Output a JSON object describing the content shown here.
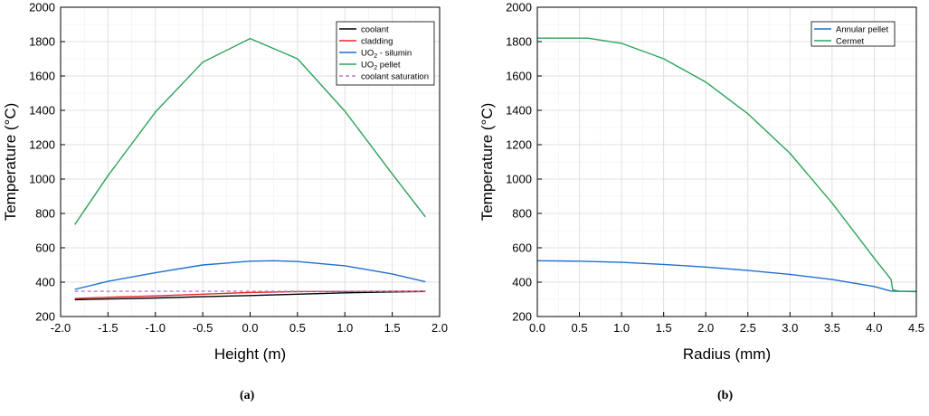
{
  "chart_data": [
    {
      "type": "line",
      "caption": "(a)",
      "xlabel": "Height (m)",
      "ylabel": "Temperature (°C)",
      "xlim": [
        -2.0,
        2.0
      ],
      "ylim": [
        200,
        2000
      ],
      "xticks": [
        "-2.0",
        "-1.5",
        "-1.0",
        "-0.5",
        "0.0",
        "0.5",
        "1.0",
        "1.5",
        "2.0"
      ],
      "yticks": [
        "200",
        "400",
        "600",
        "800",
        "1000",
        "1200",
        "1400",
        "1600",
        "1800",
        "2000"
      ],
      "grid": true,
      "legend_position": "top-right",
      "series": [
        {
          "name": "coolant",
          "color": "#000000",
          "style": "solid",
          "x": [
            -1.85,
            -1.5,
            -1.0,
            -0.5,
            0.0,
            0.5,
            1.0,
            1.5,
            1.85
          ],
          "y": [
            298,
            302,
            308,
            315,
            322,
            330,
            338,
            343,
            346
          ]
        },
        {
          "name": "cladding",
          "color": "#e8262a",
          "style": "solid",
          "x": [
            -1.85,
            -1.5,
            -1.0,
            -0.5,
            0.0,
            0.5,
            1.0,
            1.5,
            1.85
          ],
          "y": [
            305,
            312,
            320,
            330,
            340,
            345,
            346,
            347,
            348
          ]
        },
        {
          "name": "UO2 - silumin",
          "label_main": "UO",
          "label_sub": "2",
          "label_rest": " - silumin",
          "color": "#1f6fd1",
          "style": "solid",
          "x": [
            -1.85,
            -1.5,
            -1.0,
            -0.5,
            0.0,
            0.25,
            0.5,
            1.0,
            1.5,
            1.85
          ],
          "y": [
            358,
            405,
            455,
            500,
            522,
            525,
            520,
            495,
            448,
            402
          ]
        },
        {
          "name": "UO2 pellet",
          "label_main": "UO",
          "label_sub": "2",
          "label_rest": " pellet",
          "color": "#2ca35a",
          "style": "solid",
          "x": [
            -1.85,
            -1.5,
            -1.0,
            -0.5,
            0.0,
            0.5,
            1.0,
            1.5,
            1.85
          ],
          "y": [
            735,
            1020,
            1390,
            1680,
            1818,
            1700,
            1395,
            1030,
            780
          ]
        },
        {
          "name": "coolant saturation",
          "color": "#b07fd6",
          "style": "dashed",
          "x": [
            -1.85,
            1.85
          ],
          "y": [
            347,
            347
          ]
        }
      ]
    },
    {
      "type": "line",
      "caption": "(b)",
      "xlabel": "Radius (mm)",
      "ylabel": "Temperature (°C)",
      "xlim": [
        0.0,
        4.5
      ],
      "ylim": [
        200,
        2000
      ],
      "xticks": [
        "0.0",
        "0.5",
        "1.0",
        "1.5",
        "2.0",
        "2.5",
        "3.0",
        "3.5",
        "4.0",
        "4.5"
      ],
      "yticks": [
        "200",
        "400",
        "600",
        "800",
        "1000",
        "1200",
        "1400",
        "1600",
        "1800",
        "2000"
      ],
      "grid": true,
      "legend_position": "top-right",
      "series": [
        {
          "name": "Annular pellet",
          "color": "#1f6fd1",
          "style": "solid",
          "x": [
            0.0,
            0.5,
            1.0,
            1.5,
            2.0,
            2.5,
            3.0,
            3.5,
            4.0,
            4.2,
            4.5
          ],
          "y": [
            525,
            522,
            515,
            503,
            488,
            468,
            445,
            415,
            375,
            348,
            344
          ]
        },
        {
          "name": "Cermet",
          "color": "#2ca35a",
          "style": "solid",
          "x": [
            0.0,
            0.6,
            1.0,
            1.5,
            2.0,
            2.5,
            3.0,
            3.5,
            4.0,
            4.2,
            4.22,
            4.3,
            4.5
          ],
          "y": [
            1820,
            1820,
            1790,
            1700,
            1565,
            1380,
            1150,
            860,
            540,
            415,
            355,
            347,
            347
          ]
        }
      ]
    }
  ]
}
